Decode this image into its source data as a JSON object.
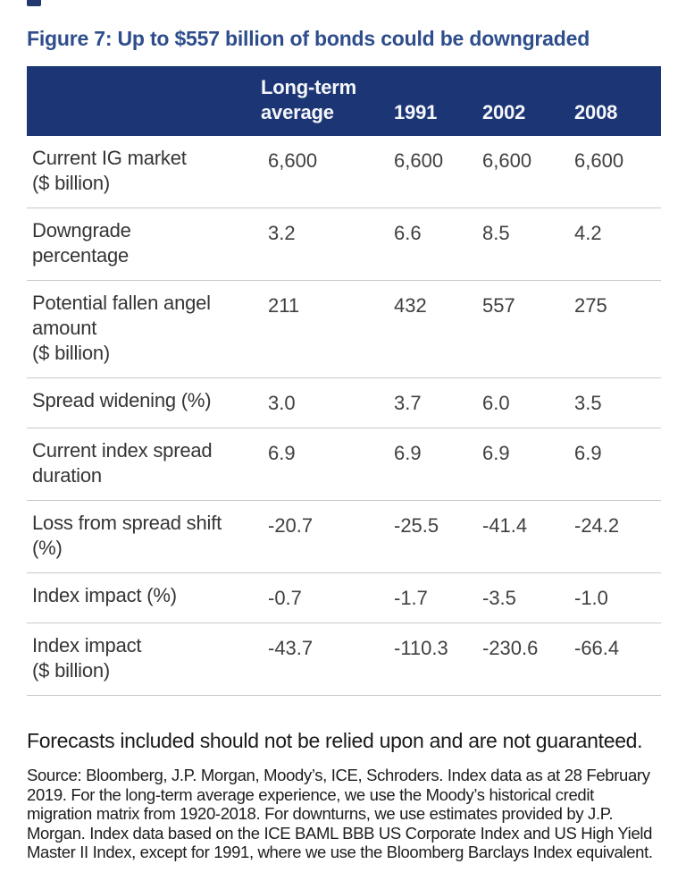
{
  "figure": {
    "title": "Figure 7: Up to $557 billion of bonds could be downgraded"
  },
  "table": {
    "header": {
      "long_term_average": "Long-term\naverage",
      "year_1991": "1991",
      "year_2002": "2002",
      "year_2008": "2008"
    },
    "rows": [
      {
        "label": "Current IG market\n($ billion)",
        "values": [
          "6,600",
          "6,600",
          "6,600",
          "6,600"
        ]
      },
      {
        "label": "Downgrade\npercentage",
        "values": [
          "3.2",
          "6.6",
          "8.5",
          "4.2"
        ]
      },
      {
        "label": "Potential fallen angel\namount\n($ billion)",
        "values": [
          "211",
          "432",
          "557",
          "275"
        ]
      },
      {
        "label": "Spread widening (%)",
        "values": [
          "3.0",
          "3.7",
          "6.0",
          "3.5"
        ]
      },
      {
        "label": "Current index spread\nduration",
        "values": [
          "6.9",
          "6.9",
          "6.9",
          "6.9"
        ]
      },
      {
        "label": "Loss from spread shift\n(%)",
        "values": [
          "-20.7",
          "-25.5",
          "-41.4",
          "-24.2"
        ]
      },
      {
        "label": "Index impact (%)",
        "values": [
          "-0.7",
          "-1.7",
          "-3.5",
          "-1.0"
        ]
      },
      {
        "label": "Index impact\n($ billion)",
        "values": [
          "-43.7",
          "-110.3",
          "-230.6",
          "-66.4"
        ]
      }
    ]
  },
  "footer": {
    "disclaimer": "Forecasts included should not be relied upon and are not guaranteed.",
    "source": "Source: Bloomberg, J.P. Morgan, Moody’s, ICE, Schroders. Index data as at 28 February 2019. For the long-term average experience, we use the Moody’s historical credit migration matrix from 1920-2018. For downturns, we use estimates provided by J.P. Morgan. Index data based on the ICE BAML BBB US Corporate Index and US High Yield Master II Index, except for 1991, where we use the Bloomberg Barclays Index equivalent."
  },
  "colors": {
    "header_background": "#1c3575",
    "title_text": "#2e4d8c",
    "body_text": "#3a3a3a",
    "divider": "#c9c9c9"
  },
  "chart_data": {
    "type": "table",
    "title": "Figure 7: Up to $557 billion of bonds could be downgraded",
    "columns": [
      "Long-term average",
      "1991",
      "2002",
      "2008"
    ],
    "rows": [
      {
        "label": "Current IG market ($ billion)",
        "values": [
          6600,
          6600,
          6600,
          6600
        ]
      },
      {
        "label": "Downgrade percentage",
        "values": [
          3.2,
          6.6,
          8.5,
          4.2
        ]
      },
      {
        "label": "Potential fallen angel amount ($ billion)",
        "values": [
          211,
          432,
          557,
          275
        ]
      },
      {
        "label": "Spread widening (%)",
        "values": [
          3.0,
          3.7,
          6.0,
          3.5
        ]
      },
      {
        "label": "Current index spread duration",
        "values": [
          6.9,
          6.9,
          6.9,
          6.9
        ]
      },
      {
        "label": "Loss from spread shift (%)",
        "values": [
          -20.7,
          -25.5,
          -41.4,
          -24.2
        ]
      },
      {
        "label": "Index impact (%)",
        "values": [
          -0.7,
          -1.7,
          -3.5,
          -1.0
        ]
      },
      {
        "label": "Index impact ($ billion)",
        "values": [
          -43.7,
          -110.3,
          -230.6,
          -66.4
        ]
      }
    ]
  }
}
